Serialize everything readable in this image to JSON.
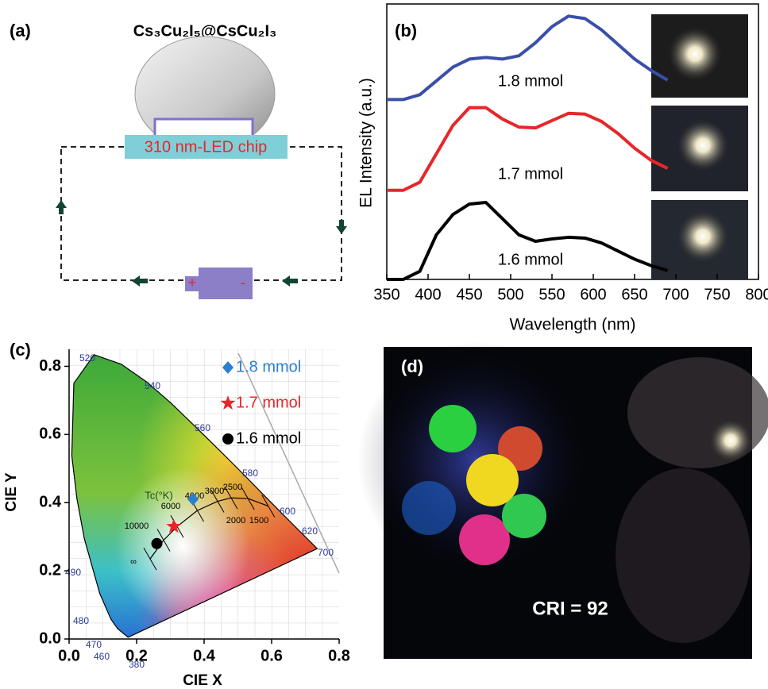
{
  "panels": {
    "a": {
      "label": "(a)",
      "title": "Cs₃Cu₂I₅@CsCu₂I₃",
      "chip": "310 nm-LED chip",
      "plus": "+",
      "minus": "-"
    },
    "d": {
      "label": "(d)",
      "caption": "CRI = 92"
    }
  },
  "chart_data": [
    {
      "type": "line",
      "panel_label": "(b)",
      "xlabel": "Wavelength (nm)",
      "ylabel": "EL Intensity (a.u.)",
      "x": [
        350,
        370,
        390,
        410,
        430,
        450,
        470,
        490,
        510,
        530,
        550,
        570,
        590,
        610,
        630,
        650,
        670,
        690
      ],
      "xlim": [
        350,
        800
      ],
      "xticks": [
        350,
        400,
        450,
        500,
        550,
        600,
        650,
        700,
        750,
        800
      ],
      "ylim": [
        0,
        3.4
      ],
      "series": [
        {
          "name": "1.8 mmol",
          "color": "#3a4fa8",
          "values": [
            2.22,
            2.22,
            2.28,
            2.45,
            2.62,
            2.72,
            2.74,
            2.72,
            2.76,
            2.92,
            3.12,
            3.25,
            3.22,
            3.08,
            2.9,
            2.72,
            2.58,
            2.46
          ]
        },
        {
          "name": "1.7 mmol",
          "color": "#e8262a",
          "values": [
            1.1,
            1.1,
            1.2,
            1.55,
            1.9,
            2.12,
            2.12,
            1.98,
            1.88,
            1.87,
            1.96,
            2.05,
            2.04,
            1.95,
            1.8,
            1.62,
            1.47,
            1.37
          ]
        },
        {
          "name": "1.6 mmol",
          "color": "#000000",
          "values": [
            0,
            0,
            0.1,
            0.55,
            0.8,
            0.93,
            0.95,
            0.75,
            0.55,
            0.47,
            0.5,
            0.52,
            0.51,
            0.45,
            0.35,
            0.25,
            0.17,
            0.11
          ]
        }
      ]
    },
    {
      "type": "scatter",
      "panel_label": "(c)",
      "xlabel": "CIE X",
      "ylabel": "CIE Y",
      "xlim": [
        0,
        0.8
      ],
      "ylim": [
        0,
        0.85
      ],
      "xticks": [
        {
          "value": 0,
          "label": "0.0"
        },
        0.2,
        0.4,
        0.6,
        0.8
      ],
      "yticks": [
        {
          "value": 0,
          "label": "0.0"
        },
        0.2,
        0.4,
        0.6,
        0.8
      ],
      "series": [
        {
          "name": "1.8 mmol",
          "color": "#2a7fd0",
          "marker": "diamond",
          "x": [
            0.367
          ],
          "values": [
            0.41
          ]
        },
        {
          "name": "1.7 mmol",
          "color": "#e8262a",
          "marker": "star",
          "x": [
            0.31
          ],
          "values": [
            0.33
          ]
        },
        {
          "name": "1.6 mmol",
          "color": "#000000",
          "marker": "circle",
          "x": [
            0.26
          ],
          "values": [
            0.28
          ]
        }
      ],
      "spectral_labels": [
        "520",
        "540",
        "560",
        "580",
        "600",
        "620",
        "700",
        "490",
        "480",
        "470",
        "460",
        "380"
      ],
      "cct_title": "Tc(°K)",
      "cct_labels": [
        "10000",
        "6000",
        "4000",
        "3000",
        "2500",
        "2000",
        "1500",
        "∞"
      ]
    }
  ]
}
